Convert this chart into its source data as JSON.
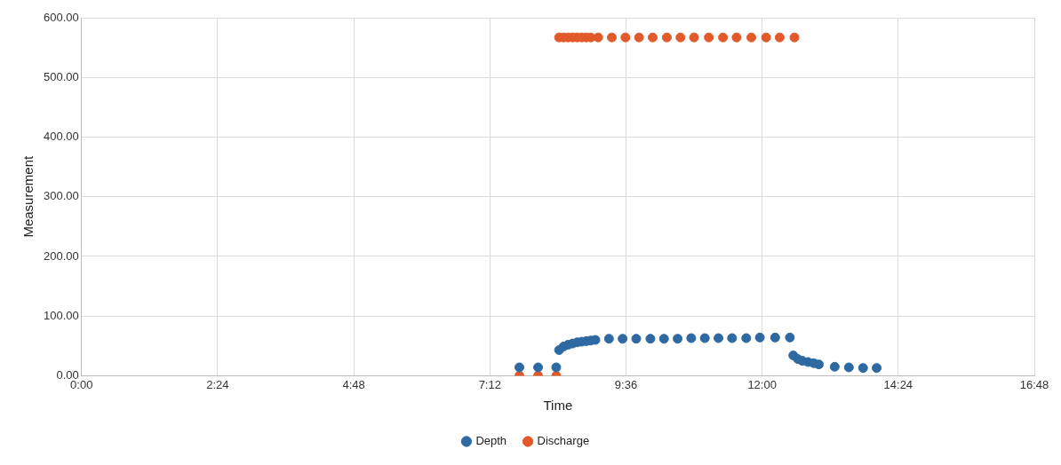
{
  "chart_data": {
    "type": "scatter",
    "xlabel": "Time",
    "ylabel": "Measurement",
    "marker": "circle",
    "grid": true,
    "legend": "bottom",
    "xlim": [
      0,
      16.8
    ],
    "xticks": [
      {
        "value": 0,
        "label": "0:00"
      },
      {
        "value": 2.4,
        "label": "2:24"
      },
      {
        "value": 4.8,
        "label": "4:48"
      },
      {
        "value": 7.2,
        "label": "7:12"
      },
      {
        "value": 9.6,
        "label": "9:36"
      },
      {
        "value": 12,
        "label": "12:00"
      },
      {
        "value": 14.4,
        "label": "14:24"
      },
      {
        "value": 16.8,
        "label": "16:48"
      }
    ],
    "ylim": [
      0,
      600
    ],
    "yticks": [
      {
        "value": 0,
        "label": "0.00"
      },
      {
        "value": 100,
        "label": "100.00"
      },
      {
        "value": 200,
        "label": "200.00"
      },
      {
        "value": 300,
        "label": "300.00"
      },
      {
        "value": 400,
        "label": "400.00"
      },
      {
        "value": 500,
        "label": "500.00"
      },
      {
        "value": 600,
        "label": "600.00"
      }
    ],
    "series": [
      {
        "name": "Depth",
        "color": "#2e6aa1",
        "x": [
          7.72,
          8.05,
          8.37,
          8.42,
          8.5,
          8.58,
          8.66,
          8.74,
          8.82,
          8.9,
          8.98,
          9.06,
          9.3,
          9.54,
          9.78,
          10.03,
          10.27,
          10.51,
          10.75,
          10.99,
          11.23,
          11.47,
          11.72,
          11.96,
          12.23,
          12.49,
          12.55,
          12.63,
          12.71,
          12.81,
          12.91,
          13.0,
          13.28,
          13.53,
          13.78,
          14.02
        ],
        "values": [
          14,
          14,
          14,
          43,
          49,
          52,
          54,
          56,
          57,
          58,
          59,
          60,
          62,
          62,
          62,
          62,
          62,
          62,
          63,
          63,
          63,
          63,
          63,
          64,
          64,
          64,
          34,
          28,
          25,
          23,
          21,
          19,
          15,
          14,
          13,
          13
        ]
      },
      {
        "name": "Discharge",
        "color": "#e35a2a",
        "x": [
          7.72,
          8.05,
          8.37,
          8.42,
          8.5,
          8.58,
          8.66,
          8.74,
          8.82,
          8.9,
          8.98,
          9.11,
          9.35,
          9.59,
          9.83,
          10.07,
          10.32,
          10.56,
          10.8,
          11.06,
          11.31,
          11.55,
          11.81,
          12.07,
          12.31,
          12.57
        ],
        "values": [
          0,
          0,
          0,
          567,
          567,
          567,
          567,
          567,
          567,
          567,
          567,
          567,
          567,
          567,
          567,
          567,
          567,
          567,
          567,
          567,
          567,
          567,
          567,
          567,
          567,
          567
        ]
      }
    ]
  }
}
